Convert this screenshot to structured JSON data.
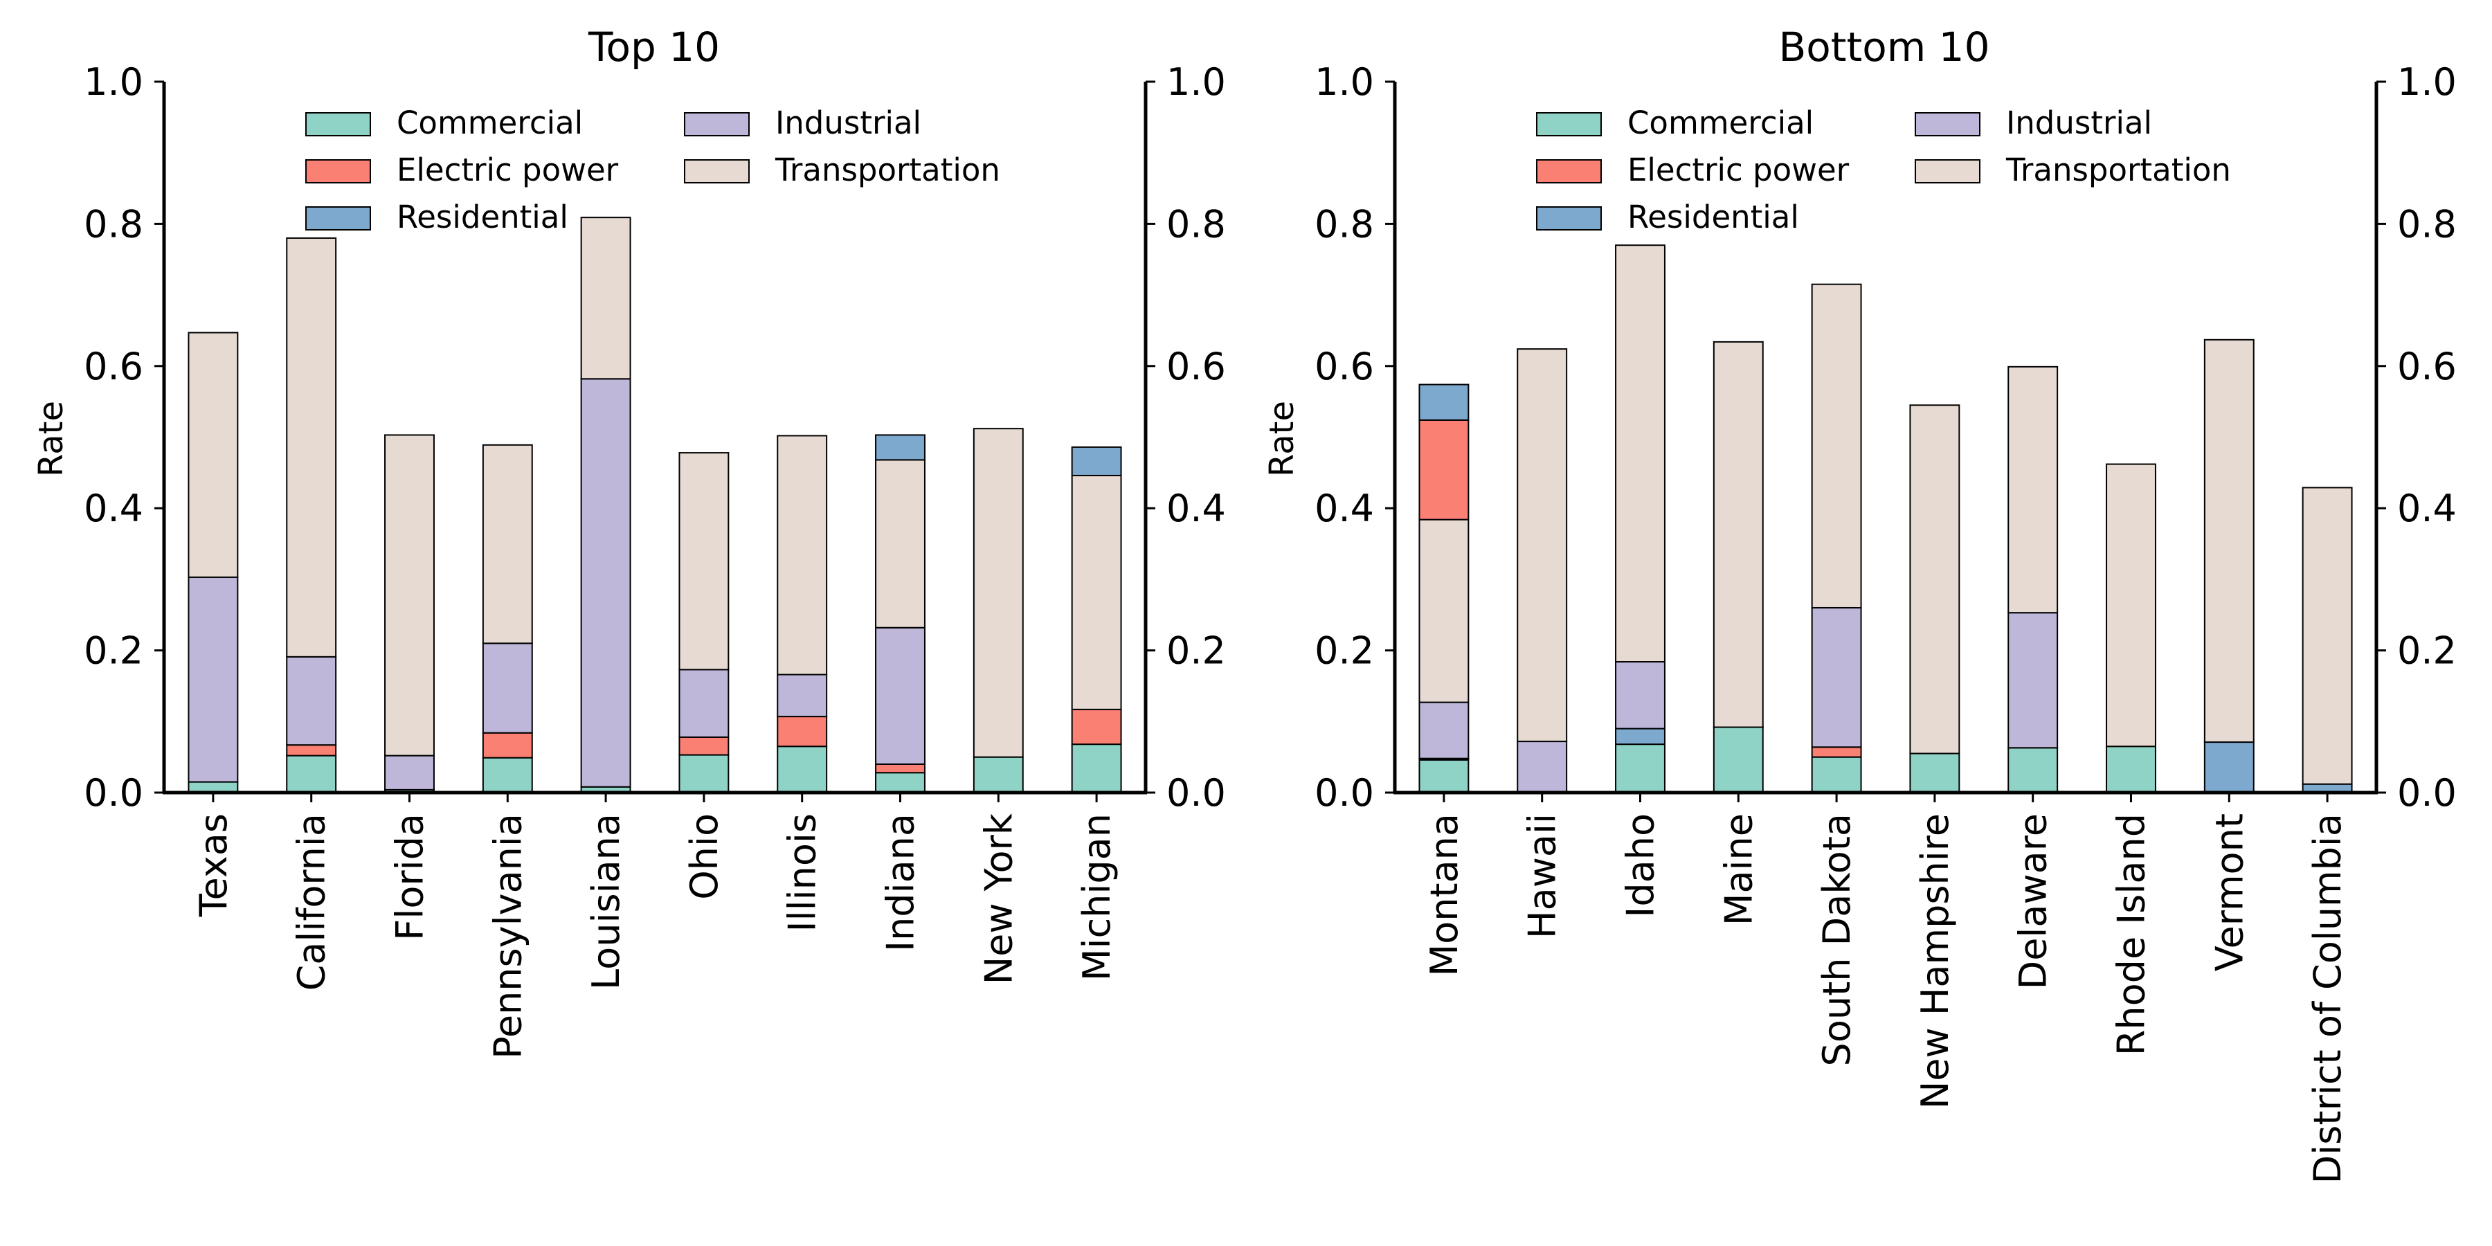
{
  "chart_data": [
    {
      "type": "bar",
      "stacked": true,
      "title": "Top 10",
      "xlabel": "",
      "ylabel": "Rate",
      "ylim": [
        0,
        1.0
      ],
      "yticks": [
        "0.0",
        "0.2",
        "0.4",
        "0.6",
        "0.8",
        "1.0"
      ],
      "secondary_y_axis": true,
      "legend_position": "top",
      "categories": [
        "Texas",
        "California",
        "Florida",
        "Pennsylvania",
        "Louisiana",
        "Ohio",
        "Illinois",
        "Indiana",
        "New York",
        "Michigan"
      ],
      "series": [
        {
          "name": "Commercial",
          "values": [
            0.015,
            0.052,
            0.004,
            0.049,
            0.008,
            0.053,
            0.065,
            0.028,
            0.05,
            0.068
          ]
        },
        {
          "name": "Electric power",
          "values": [
            0.0,
            0.015,
            0.0,
            0.035,
            0.0,
            0.025,
            0.042,
            0.012,
            0.0,
            0.049
          ]
        },
        {
          "name": "Residential",
          "values": [
            0.0,
            0.0,
            0.0,
            0.0,
            0.0,
            0.0,
            0.0,
            0.0,
            0.0,
            0.0
          ]
        },
        {
          "name": "Industrial",
          "values": [
            0.288,
            0.124,
            0.048,
            0.126,
            0.574,
            0.095,
            0.059,
            0.192,
            0.0,
            0.0
          ]
        },
        {
          "name": "Transportation",
          "values": [
            0.344,
            0.589,
            0.451,
            0.279,
            0.227,
            0.305,
            0.336,
            0.236,
            0.462,
            0.329
          ]
        },
        {
          "name": "Residential",
          "values": [
            0.0,
            0.0,
            0.0,
            0.0,
            0.0,
            0.0,
            0.0,
            0.035,
            0.0,
            0.04
          ]
        }
      ]
    },
    {
      "type": "bar",
      "stacked": true,
      "title": "Bottom 10",
      "xlabel": "",
      "ylabel": "Rate",
      "ylim": [
        0,
        1.0
      ],
      "yticks": [
        "0.0",
        "0.2",
        "0.4",
        "0.6",
        "0.8",
        "1.0"
      ],
      "secondary_y_axis": true,
      "legend_position": "top",
      "categories": [
        "Montana",
        "Hawaii",
        "Idaho",
        "Maine",
        "South Dakota",
        "New Hampshire",
        "Delaware",
        "Rhode Island",
        "Vermont",
        "District of Columbia"
      ],
      "series": [
        {
          "name": "Commercial",
          "values": [
            0.046,
            0.0,
            0.068,
            0.092,
            0.05,
            0.055,
            0.063,
            0.065,
            0.0,
            0.0
          ]
        },
        {
          "name": "Electric power",
          "values": [
            0.0,
            0.0,
            0.0,
            0.0,
            0.014,
            0.0,
            0.0,
            0.0,
            0.0,
            0.0
          ]
        },
        {
          "name": "Residential",
          "values": [
            0.002,
            0.0,
            0.022,
            0.0,
            0.0,
            0.0,
            0.0,
            0.0,
            0.071,
            0.012
          ]
        },
        {
          "name": "Industrial",
          "values": [
            0.079,
            0.072,
            0.094,
            0.0,
            0.196,
            0.0,
            0.19,
            0.0,
            0.0,
            0.0
          ]
        },
        {
          "name": "Transportation",
          "values": [
            0.257,
            0.552,
            0.586,
            0.542,
            0.455,
            0.49,
            0.346,
            0.397,
            0.566,
            0.417
          ]
        },
        {
          "name": "Electric power",
          "values": [
            0.14,
            0.0,
            0.0,
            0.0,
            0.0,
            0.0,
            0.0,
            0.0,
            0.0,
            0.0
          ]
        },
        {
          "name": "Residential",
          "values": [
            0.05,
            0.0,
            0.0,
            0.0,
            0.0,
            0.0,
            0.0,
            0.0,
            0.0,
            0.0
          ]
        }
      ]
    }
  ],
  "legend": {
    "items": [
      {
        "label": "Commercial",
        "color": "#8fd3c6"
      },
      {
        "label": "Electric power",
        "color": "#f98072"
      },
      {
        "label": "Residential",
        "color": "#7ea9cf"
      },
      {
        "label": "Industrial",
        "color": "#beb7da"
      },
      {
        "label": "Transportation",
        "color": "#e6dad3"
      }
    ]
  },
  "colors": {
    "Commercial": "#8fd3c6",
    "Electric power": "#f98072",
    "Residential": "#7ea9cf",
    "Industrial": "#beb7da",
    "Transportation": "#e6dad3"
  }
}
